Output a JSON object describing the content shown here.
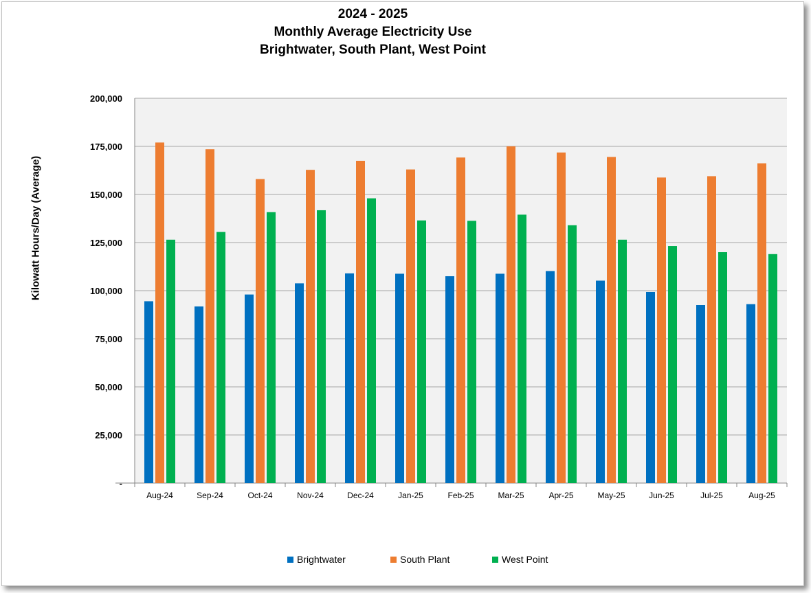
{
  "chart_data": {
    "type": "bar",
    "title": [
      "2024 - 2025",
      "Monthly Average Electricity Use",
      "Brightwater, South Plant, West Point"
    ],
    "ylabel": "Kilowatt Hours/Day (Average)",
    "xlabel": "",
    "categories": [
      "Aug-24",
      "Sep-24",
      "Oct-24",
      "Nov-24",
      "Dec-24",
      "Jan-25",
      "Feb-25",
      "Mar-25",
      "Apr-25",
      "May-25",
      "Jun-25",
      "Jul-25",
      "Aug-25"
    ],
    "ylim": [
      0,
      200000
    ],
    "yticks": [
      0,
      25000,
      50000,
      75000,
      100000,
      125000,
      150000,
      175000,
      200000
    ],
    "ytick_labels": [
      "-",
      "25,000",
      "50,000",
      "75,000",
      "100,000",
      "125,000",
      "150,000",
      "175,000",
      "200,000"
    ],
    "grid": true,
    "legend_position": "bottom",
    "series": [
      {
        "name": "Brightwater",
        "color": "#0070c0",
        "values": [
          94500,
          91800,
          98000,
          103800,
          109000,
          108800,
          107500,
          108800,
          110200,
          105200,
          99300,
          92500,
          93000
        ]
      },
      {
        "name": "South Plant",
        "color": "#ed7d31",
        "values": [
          177000,
          173500,
          158000,
          162800,
          167500,
          163000,
          169200,
          175000,
          171800,
          169500,
          158800,
          159500,
          166200
        ]
      },
      {
        "name": "West Point",
        "color": "#00b050",
        "values": [
          126500,
          130500,
          140800,
          141800,
          148000,
          136500,
          136300,
          139500,
          134000,
          126500,
          123200,
          120000,
          119000
        ]
      }
    ]
  }
}
